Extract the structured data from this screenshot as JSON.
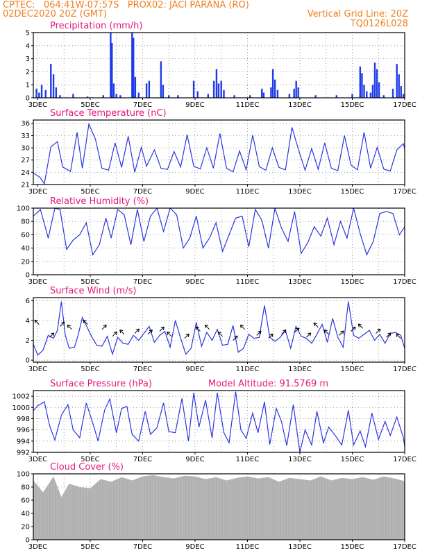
{
  "header": {
    "line1": "CPTEC:   064:41W-07:57S   PROX02: JACI PARANA (RO)",
    "line2": "02DEC2020 20Z (GMT)",
    "right1": "Vertical Grid Line: 20Z",
    "right2": "TQ0126L028"
  },
  "x_tick_labels": [
    "3DEC",
    "5DEC",
    "7DEC",
    "9DEC",
    "11DEC",
    "13DEC",
    "15DEC",
    "17DEC"
  ],
  "colors": {
    "line": "#2a35e0",
    "bar": "#1f3be8",
    "cloud": "#b0b0b0",
    "title": "#e5197a",
    "header": "#f07f1e"
  },
  "chart_data": [
    {
      "type": "bar",
      "title": "Precipitation (mm/h)",
      "ylim": [
        0,
        5
      ],
      "yticks": [
        0,
        1,
        2,
        3,
        4,
        5
      ],
      "x_range_days": [
        2.83,
        17.0
      ],
      "events": [
        [
          2.95,
          0.7
        ],
        [
          3.05,
          0.4
        ],
        [
          3.15,
          1.0
        ],
        [
          3.3,
          0.6
        ],
        [
          3.5,
          2.6
        ],
        [
          3.6,
          1.8
        ],
        [
          3.7,
          0.8
        ],
        [
          3.85,
          0.2
        ],
        [
          4.35,
          0.3
        ],
        [
          4.9,
          0.1
        ],
        [
          5.5,
          0.2
        ],
        [
          5.78,
          5.0
        ],
        [
          5.83,
          4.2
        ],
        [
          5.9,
          1.1
        ],
        [
          6.0,
          0.3
        ],
        [
          6.15,
          0.2
        ],
        [
          6.6,
          5.0
        ],
        [
          6.65,
          4.6
        ],
        [
          6.72,
          1.6
        ],
        [
          6.85,
          0.4
        ],
        [
          7.15,
          1.1
        ],
        [
          7.25,
          1.3
        ],
        [
          7.7,
          2.8
        ],
        [
          7.78,
          1.0
        ],
        [
          8.0,
          0.2
        ],
        [
          8.35,
          0.2
        ],
        [
          8.95,
          1.3
        ],
        [
          9.1,
          0.5
        ],
        [
          9.5,
          0.3
        ],
        [
          9.72,
          1.3
        ],
        [
          9.82,
          2.2
        ],
        [
          9.9,
          1.1
        ],
        [
          10.0,
          1.3
        ],
        [
          10.1,
          0.6
        ],
        [
          10.5,
          0.2
        ],
        [
          11.1,
          0.2
        ],
        [
          11.55,
          0.7
        ],
        [
          11.62,
          0.4
        ],
        [
          11.9,
          0.8
        ],
        [
          11.97,
          2.2
        ],
        [
          12.05,
          1.4
        ],
        [
          12.15,
          0.6
        ],
        [
          12.6,
          0.3
        ],
        [
          12.78,
          0.7
        ],
        [
          12.86,
          1.3
        ],
        [
          12.94,
          0.8
        ],
        [
          13.6,
          0.2
        ],
        [
          14.4,
          0.2
        ],
        [
          15.0,
          0.3
        ],
        [
          15.3,
          2.4
        ],
        [
          15.37,
          1.9
        ],
        [
          15.45,
          1.0
        ],
        [
          15.55,
          0.5
        ],
        [
          15.7,
          0.4
        ],
        [
          15.78,
          1.0
        ],
        [
          15.86,
          2.7
        ],
        [
          15.94,
          2.2
        ],
        [
          16.02,
          1.2
        ],
        [
          16.2,
          0.2
        ],
        [
          16.55,
          0.7
        ],
        [
          16.7,
          2.6
        ],
        [
          16.78,
          1.8
        ],
        [
          16.86,
          0.9
        ],
        [
          16.95,
          0.3
        ]
      ]
    },
    {
      "type": "line",
      "title": "Surface Temperature (nC)",
      "ylim": [
        21,
        36.8
      ],
      "yticks": [
        21,
        24,
        27,
        30,
        33,
        36
      ],
      "x": [
        2.83,
        3.08,
        3.25,
        3.5,
        3.75,
        3.95,
        4.25,
        4.5,
        4.7,
        4.95,
        5.2,
        5.45,
        5.7,
        5.95,
        6.2,
        6.45,
        6.7,
        6.95,
        7.15,
        7.45,
        7.7,
        7.95,
        8.2,
        8.45,
        8.7,
        8.95,
        9.2,
        9.45,
        9.7,
        9.95,
        10.2,
        10.45,
        10.7,
        10.95,
        11.2,
        11.45,
        11.7,
        11.95,
        12.2,
        12.45,
        12.7,
        12.95,
        13.2,
        13.45,
        13.7,
        13.95,
        14.2,
        14.45,
        14.7,
        14.95,
        15.2,
        15.45,
        15.7,
        15.95,
        16.2,
        16.45,
        16.7,
        16.95,
        17.0
      ],
      "values": [
        23.8,
        22.8,
        21.2,
        30.2,
        31.5,
        25.3,
        24.2,
        33.8,
        25.0,
        35.8,
        32.1,
        25.0,
        24.5,
        31.2,
        25.2,
        32.8,
        24.0,
        30.1,
        25.5,
        29.5,
        25.0,
        24.7,
        29.1,
        25.3,
        33.2,
        25.5,
        24.8,
        30.0,
        25.0,
        33.5,
        25.0,
        24.1,
        29.2,
        24.6,
        33.1,
        25.4,
        24.5,
        30.0,
        25.2,
        24.6,
        35.0,
        29.5,
        24.5,
        29.8,
        24.7,
        31.2,
        25.0,
        24.4,
        33.0,
        25.8,
        24.6,
        33.8,
        25.0,
        30.1,
        24.8,
        24.3,
        29.5,
        31.0,
        29.8
      ]
    },
    {
      "type": "line",
      "title": "Relative Humidity (%)",
      "ylim": [
        0,
        100
      ],
      "yticks": [
        0,
        20,
        40,
        60,
        80,
        100
      ],
      "x": [
        2.83,
        3.1,
        3.4,
        3.65,
        3.85,
        4.1,
        4.35,
        4.6,
        4.85,
        5.1,
        5.35,
        5.6,
        5.8,
        6.05,
        6.3,
        6.55,
        6.8,
        7.05,
        7.3,
        7.55,
        7.8,
        8.05,
        8.3,
        8.55,
        8.8,
        9.05,
        9.3,
        9.55,
        9.8,
        10.05,
        10.3,
        10.55,
        10.8,
        11.05,
        11.3,
        11.55,
        11.8,
        12.05,
        12.3,
        12.55,
        12.8,
        13.05,
        13.3,
        13.55,
        13.8,
        14.05,
        14.3,
        14.55,
        14.8,
        15.05,
        15.3,
        15.55,
        15.8,
        16.05,
        16.3,
        16.55,
        16.8,
        17.0
      ],
      "values": [
        88,
        98,
        55,
        100,
        98,
        38,
        52,
        60,
        78,
        30,
        45,
        85,
        55,
        98,
        90,
        45,
        98,
        50,
        88,
        100,
        65,
        100,
        90,
        40,
        55,
        88,
        40,
        55,
        78,
        35,
        60,
        85,
        88,
        42,
        98,
        82,
        40,
        100,
        70,
        50,
        95,
        32,
        48,
        72,
        58,
        85,
        45,
        80,
        55,
        100,
        62,
        30,
        50,
        92,
        95,
        92,
        60,
        72
      ]
    },
    {
      "type": "line",
      "title": "Surface Wind (m/s)",
      "ylim": [
        -0.2,
        6.3
      ],
      "yticks": [
        0,
        2,
        4,
        6
      ],
      "x": [
        2.83,
        3.0,
        3.2,
        3.4,
        3.6,
        3.75,
        3.9,
        4.05,
        4.2,
        4.4,
        4.55,
        4.7,
        4.85,
        5.05,
        5.25,
        5.45,
        5.65,
        5.85,
        6.05,
        6.25,
        6.45,
        6.65,
        6.85,
        7.05,
        7.25,
        7.45,
        7.65,
        7.85,
        8.05,
        8.25,
        8.45,
        8.65,
        8.85,
        9.05,
        9.25,
        9.45,
        9.65,
        9.85,
        10.05,
        10.25,
        10.45,
        10.65,
        10.85,
        11.05,
        11.25,
        11.45,
        11.65,
        11.85,
        12.05,
        12.25,
        12.45,
        12.65,
        12.85,
        13.05,
        13.25,
        13.45,
        13.65,
        13.85,
        14.05,
        14.25,
        14.45,
        14.65,
        14.85,
        15.05,
        15.25,
        15.45,
        15.65,
        15.85,
        16.05,
        16.25,
        16.45,
        16.65,
        16.85,
        17.0
      ],
      "values": [
        1.6,
        0.5,
        1.0,
        2.5,
        2.2,
        3.0,
        5.9,
        2.5,
        1.2,
        1.3,
        2.6,
        4.3,
        3.5,
        2.4,
        1.5,
        1.4,
        2.4,
        0.6,
        2.3,
        1.7,
        1.6,
        2.5,
        2.0,
        2.7,
        3.4,
        1.8,
        2.5,
        2.9,
        1.3,
        4.0,
        2.2,
        0.6,
        1.2,
        3.8,
        1.4,
        2.8,
        2.0,
        3.1,
        1.5,
        1.6,
        3.5,
        0.8,
        1.2,
        2.6,
        2.2,
        2.3,
        5.5,
        2.3,
        1.9,
        2.3,
        3.0,
        1.2,
        3.4,
        2.4,
        2.2,
        1.7,
        2.6,
        3.6,
        1.8,
        4.2,
        2.3,
        1.3,
        5.9,
        2.5,
        2.2,
        2.6,
        3.0,
        2.0,
        2.6,
        1.7,
        2.7,
        2.8,
        2.5,
        1.2
      ]
    },
    {
      "type": "line",
      "title": "Surface Pressure (hPa)",
      "annotation": "Model Altitude: 91.5769 m",
      "ylim": [
        992,
        1003
      ],
      "yticks": [
        992,
        994,
        996,
        998,
        1000,
        1002
      ],
      "x": [
        2.83,
        3.0,
        3.25,
        3.45,
        3.65,
        3.9,
        4.15,
        4.35,
        4.6,
        4.85,
        5.1,
        5.3,
        5.55,
        5.75,
        6.0,
        6.2,
        6.4,
        6.6,
        6.85,
        7.1,
        7.3,
        7.55,
        7.8,
        8.0,
        8.25,
        8.5,
        8.75,
        8.95,
        9.15,
        9.4,
        9.65,
        9.85,
        10.1,
        10.3,
        10.55,
        10.75,
        10.95,
        11.2,
        11.4,
        11.65,
        11.85,
        12.1,
        12.3,
        12.5,
        12.75,
        13.0,
        13.2,
        13.45,
        13.65,
        13.9,
        14.1,
        14.35,
        14.6,
        14.85,
        15.05,
        15.3,
        15.5,
        15.75,
        16.0,
        16.25,
        16.45,
        16.7,
        16.95,
        17.0
      ],
      "values": [
        999.4,
        1000.3,
        1001.0,
        996.8,
        994.2,
        998.6,
        1000.5,
        996.0,
        994.6,
        1000.8,
        997.2,
        994.0,
        999.5,
        1001.5,
        995.5,
        999.8,
        1000.2,
        995.2,
        994.0,
        999.3,
        995.2,
        996.4,
        1000.8,
        995.7,
        995.5,
        1001.6,
        994.0,
        1002.6,
        996.5,
        1001.3,
        994.6,
        1002.6,
        995.5,
        993.7,
        1002.8,
        996.0,
        994.5,
        999.0,
        995.5,
        1001.0,
        993.4,
        999.8,
        997.5,
        993.2,
        1000.5,
        992.0,
        996.0,
        993.3,
        999.3,
        993.7,
        996.5,
        995.0,
        993.3,
        999.5,
        993.3,
        995.8,
        993.0,
        999.0,
        994.3,
        997.5,
        995.0,
        998.3,
        994.6,
        993.0
      ]
    },
    {
      "type": "area",
      "title": "Cloud Cover (%)",
      "ylim": [
        0,
        100
      ],
      "yticks": [
        0,
        20,
        40,
        60,
        80,
        100
      ],
      "x": [
        2.83,
        3.2,
        3.6,
        3.9,
        4.2,
        4.6,
        5.0,
        5.4,
        5.8,
        6.2,
        6.6,
        7.0,
        7.4,
        7.8,
        8.2,
        8.6,
        9.0,
        9.4,
        9.8,
        10.2,
        10.6,
        11.0,
        11.4,
        11.8,
        12.2,
        12.6,
        13.0,
        13.4,
        13.8,
        14.2,
        14.6,
        15.0,
        15.4,
        15.8,
        16.2,
        16.6,
        17.0
      ],
      "values": [
        90,
        72,
        96,
        65,
        85,
        80,
        78,
        92,
        88,
        95,
        90,
        96,
        98,
        95,
        93,
        97,
        96,
        92,
        95,
        90,
        94,
        96,
        93,
        95,
        88,
        94,
        92,
        90,
        96,
        90,
        94,
        92,
        95,
        91,
        96,
        93,
        89
      ]
    }
  ]
}
